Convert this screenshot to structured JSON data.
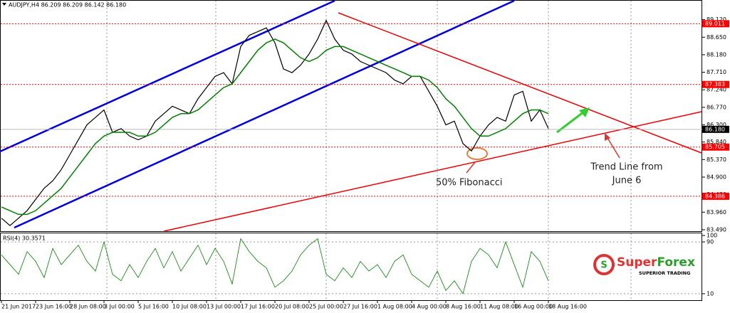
{
  "chart_data": [
    {
      "type": "line",
      "title": "AUDJPY,H4  86.209 86.209 86.142 86.180",
      "categories": [
        "21 Jun 2017",
        null,
        null,
        null,
        "23 Jun 16:00",
        null,
        null,
        null,
        "28 Jun 08:00",
        null,
        null,
        null,
        "3 Jul 00:00",
        null,
        null,
        null,
        "5 Jul 16:00",
        null,
        null,
        null,
        "10 Jul 08:00",
        null,
        null,
        null,
        "13 Jul 00:00",
        null,
        null,
        null,
        "17 Jul 16:00",
        null,
        null,
        null,
        "20 Jul 08:00",
        null,
        null,
        null,
        "25 Jul 00:00",
        null,
        null,
        null,
        "27 Jul 16:00",
        null,
        null,
        null,
        "1 Aug 08:00",
        null,
        null,
        null,
        "4 Aug 00:00",
        null,
        null,
        null,
        "8 Aug 16:00",
        null,
        null,
        null,
        "11 Aug 08:00",
        null,
        null,
        null,
        "16 Aug 00:00",
        null,
        null,
        null,
        "18 Aug 16:00"
      ],
      "series": [
        {
          "color": "#000000",
          "values": [
            83.8,
            83.6,
            83.8,
            84.0,
            84.3,
            84.6,
            84.8,
            85.1,
            85.5,
            85.9,
            86.3,
            86.5,
            86.7,
            86.1,
            86.2,
            86.0,
            85.9,
            86.0,
            86.4,
            86.6,
            86.8,
            86.7,
            86.6,
            87.0,
            87.3,
            87.6,
            87.7,
            87.4,
            88.4,
            88.7,
            88.8,
            88.9,
            88.5,
            87.8,
            87.7,
            87.9,
            88.2,
            88.6,
            89.1,
            88.6,
            88.3,
            88.2,
            88.0,
            87.9,
            87.8,
            87.7,
            87.5,
            87.4,
            87.6,
            87.6,
            87.2,
            86.8,
            86.3,
            86.4,
            85.8,
            85.6,
            86.0,
            86.3,
            86.5,
            86.4,
            87.1,
            87.2,
            86.4,
            86.7,
            86.2
          ]
        },
        {
          "color": "#008000",
          "values": [
            84.1,
            84.0,
            83.9,
            83.9,
            84.0,
            84.2,
            84.4,
            84.6,
            84.9,
            85.2,
            85.5,
            85.8,
            86.0,
            86.1,
            86.1,
            86.1,
            86.0,
            86.0,
            86.1,
            86.3,
            86.5,
            86.6,
            86.6,
            86.7,
            86.9,
            87.1,
            87.3,
            87.4,
            87.7,
            88.0,
            88.3,
            88.5,
            88.6,
            88.5,
            88.3,
            88.1,
            88.0,
            88.1,
            88.3,
            88.4,
            88.4,
            88.3,
            88.2,
            88.1,
            88.0,
            87.9,
            87.8,
            87.7,
            87.6,
            87.6,
            87.5,
            87.3,
            87.0,
            86.8,
            86.5,
            86.2,
            86.0,
            86.0,
            86.1,
            86.2,
            86.4,
            86.6,
            86.7,
            86.7,
            86.6
          ]
        }
      ],
      "ylim": [
        83.45,
        89.59
      ],
      "yticks": [
        {
          "value": 83.49,
          "label": "83.490"
        },
        {
          "value": 83.96,
          "label": "83.960"
        },
        {
          "value": 84.43,
          "label": "84.430"
        },
        {
          "value": 84.9,
          "label": "84.900"
        },
        {
          "value": 85.37,
          "label": "85.370"
        },
        {
          "value": 85.84,
          "label": "85.840"
        },
        {
          "value": 86.3,
          "label": "86.300"
        },
        {
          "value": 86.77,
          "label": "86.770"
        },
        {
          "value": 87.24,
          "label": "87.240"
        },
        {
          "value": 87.71,
          "label": "87.710"
        },
        {
          "value": 88.18,
          "label": "88.180"
        },
        {
          "value": 88.65,
          "label": "88.650"
        },
        {
          "value": 89.12,
          "label": "89.120"
        }
      ],
      "levels": [
        {
          "value": 89.011,
          "label": "89.011"
        },
        {
          "value": 87.383,
          "label": "87.383"
        },
        {
          "value": 85.705,
          "label": "85.705"
        },
        {
          "value": 84.386,
          "label": "84.386"
        }
      ],
      "level_color": "#ff0000",
      "last_price": {
        "value": 86.18,
        "label": "86.180"
      },
      "annotations": [
        "50% Fibonacci",
        "Trend Line from",
        "June 6"
      ]
    },
    {
      "type": "line",
      "title": "RSI(4) 30.3571",
      "color": "#008000",
      "values": [
        70,
        55,
        40,
        75,
        60,
        35,
        80,
        55,
        70,
        85,
        60,
        45,
        90,
        40,
        30,
        55,
        35,
        60,
        80,
        50,
        75,
        45,
        65,
        85,
        55,
        80,
        60,
        25,
        95,
        75,
        60,
        50,
        20,
        30,
        45,
        70,
        85,
        95,
        40,
        30,
        50,
        35,
        60,
        45,
        55,
        35,
        60,
        70,
        40,
        30,
        20,
        45,
        15,
        30,
        10,
        60,
        80,
        70,
        50,
        90,
        55,
        20,
        75,
        60,
        30
      ],
      "ylim": [
        0,
        100
      ],
      "yticks": [
        100,
        90,
        10
      ]
    }
  ],
  "logo": {
    "name_a": "Super",
    "name_b": "Forex",
    "tagline": "SUPERIOR TRADING"
  }
}
